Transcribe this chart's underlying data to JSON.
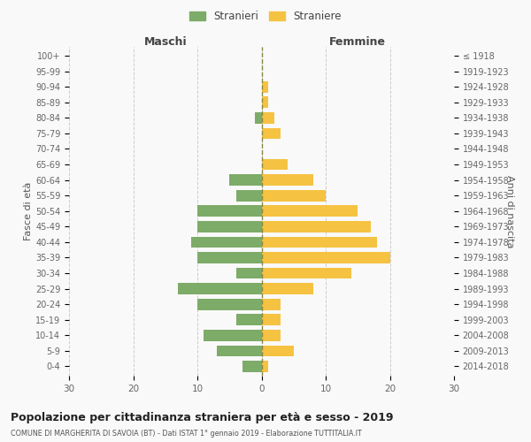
{
  "age_groups": [
    "0-4",
    "5-9",
    "10-14",
    "15-19",
    "20-24",
    "25-29",
    "30-34",
    "35-39",
    "40-44",
    "45-49",
    "50-54",
    "55-59",
    "60-64",
    "65-69",
    "70-74",
    "75-79",
    "80-84",
    "85-89",
    "90-94",
    "95-99",
    "100+"
  ],
  "birth_years": [
    "2014-2018",
    "2009-2013",
    "2004-2008",
    "1999-2003",
    "1994-1998",
    "1989-1993",
    "1984-1988",
    "1979-1983",
    "1974-1978",
    "1969-1973",
    "1964-1968",
    "1959-1963",
    "1954-1958",
    "1949-1953",
    "1944-1948",
    "1939-1943",
    "1934-1938",
    "1929-1933",
    "1924-1928",
    "1919-1923",
    "≤ 1918"
  ],
  "males": [
    3,
    7,
    9,
    4,
    10,
    13,
    4,
    10,
    11,
    10,
    10,
    4,
    5,
    0,
    0,
    0,
    1,
    0,
    0,
    0,
    0
  ],
  "females": [
    1,
    5,
    3,
    3,
    3,
    8,
    14,
    20,
    18,
    17,
    15,
    10,
    8,
    4,
    0,
    3,
    2,
    1,
    1,
    0,
    0
  ],
  "male_color": "#7dab68",
  "female_color": "#f5c242",
  "background_color": "#f9f9f9",
  "grid_color": "#cccccc",
  "dashed_line_color": "#888844",
  "title": "Popolazione per cittadinanza straniera per età e sesso - 2019",
  "subtitle": "COMUNE DI MARGHERITA DI SAVOIA (BT) - Dati ISTAT 1° gennaio 2019 - Elaborazione TUTTITALIA.IT",
  "xlabel_left": "Maschi",
  "xlabel_right": "Femmine",
  "ylabel_left": "Fasce di età",
  "ylabel_right": "Anni di nascita",
  "legend_male": "Stranieri",
  "legend_female": "Straniere",
  "xlim": 30
}
